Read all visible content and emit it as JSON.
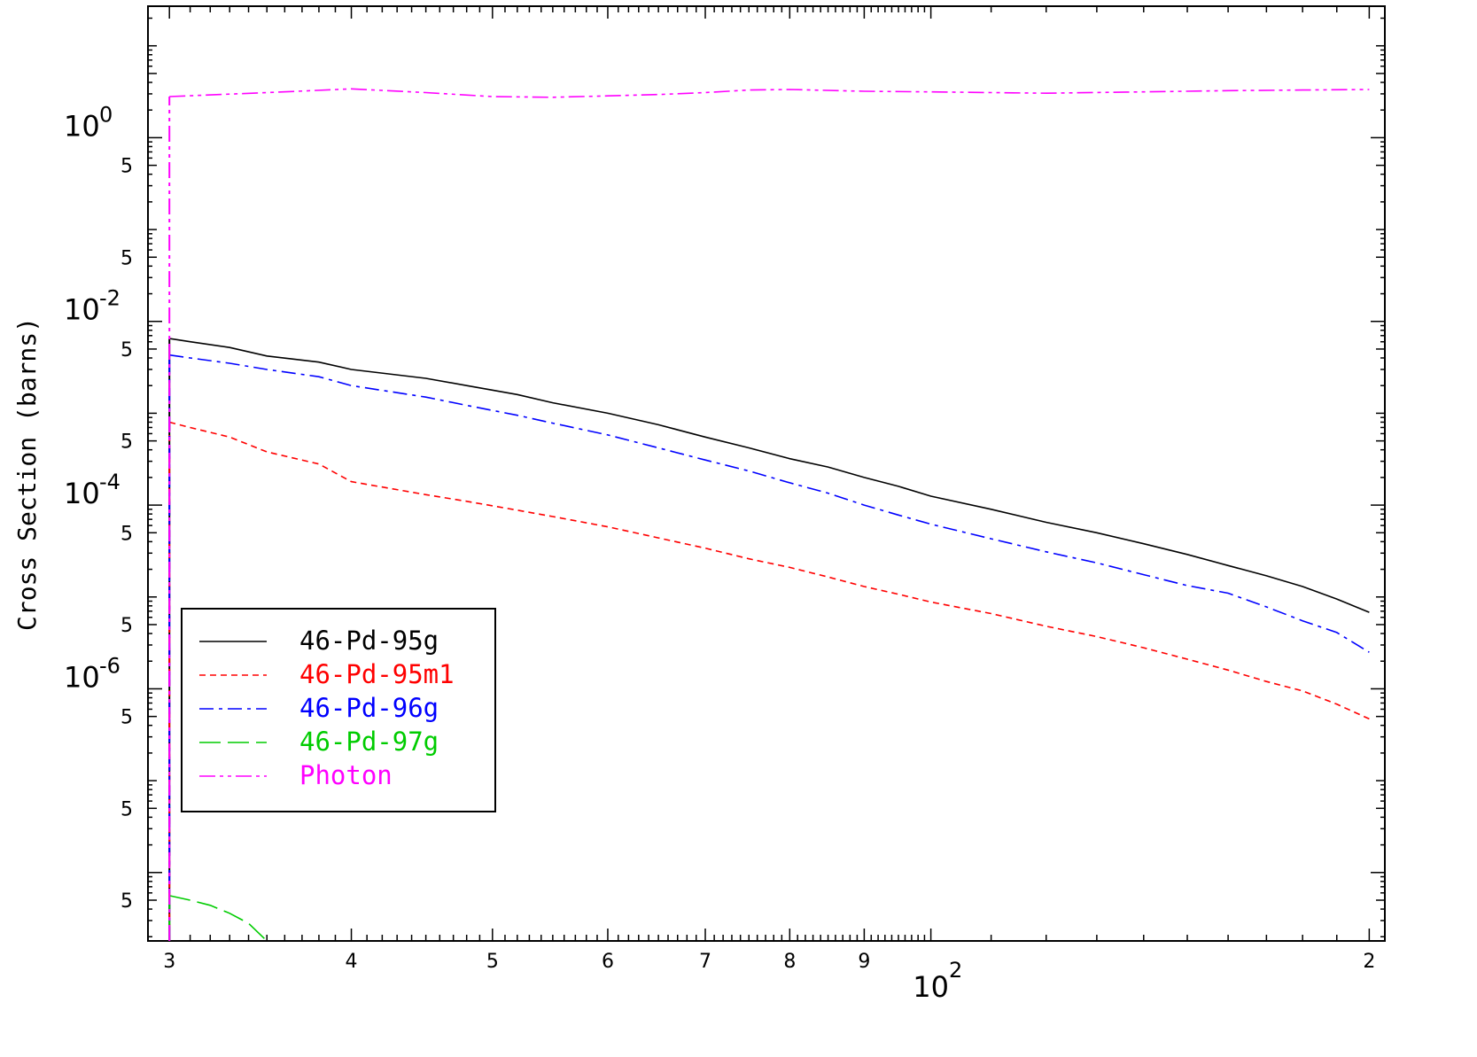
{
  "chart_data": {
    "type": "line",
    "title": "",
    "xlabel": "",
    "ylabel": "Cross Section (barns)",
    "xscale": "log",
    "yscale": "log",
    "xlim": [
      29,
      205
    ],
    "ylim": [
      1.8e-09,
      27
    ],
    "grid": false,
    "legend_position": "bottom-left",
    "x_ticks": [
      {
        "value": 30,
        "label": "3"
      },
      {
        "value": 40,
        "label": "4"
      },
      {
        "value": 50,
        "label": "5"
      },
      {
        "value": 60,
        "label": "6"
      },
      {
        "value": 70,
        "label": "7"
      },
      {
        "value": 80,
        "label": "8"
      },
      {
        "value": 90,
        "label": "9"
      },
      {
        "value": 100,
        "label": "10",
        "exponent": "2"
      },
      {
        "value": 200,
        "label": "2"
      }
    ],
    "y_ticks": [
      {
        "value": 1,
        "label": "10",
        "exponent": "0"
      },
      {
        "value": 0.01,
        "label": "10",
        "exponent": "-2"
      },
      {
        "value": 0.0001,
        "label": "10",
        "exponent": "-4"
      },
      {
        "value": 1e-06,
        "label": "10",
        "exponent": "-6"
      }
    ],
    "y_minor_labels": [
      {
        "value": 0.5,
        "label": "5"
      },
      {
        "value": 0.05,
        "label": "5"
      },
      {
        "value": 0.005,
        "label": "5"
      },
      {
        "value": 0.0005,
        "label": "5"
      },
      {
        "value": 5e-05,
        "label": "5"
      },
      {
        "value": 5e-06,
        "label": "5"
      },
      {
        "value": 5e-07,
        "label": "5"
      },
      {
        "value": 5e-08,
        "label": "5"
      },
      {
        "value": 5e-09,
        "label": "5"
      }
    ],
    "series": [
      {
        "name": "46-Pd-95g",
        "color": "#000000",
        "dash": "solid",
        "x": [
          30,
          31,
          33,
          35,
          38,
          40,
          45,
          48,
          52,
          55,
          60,
          65,
          70,
          75,
          80,
          85,
          90,
          95,
          100,
          110,
          120,
          130,
          140,
          150,
          160,
          170,
          180,
          190,
          200
        ],
        "y": [
          0.0065,
          0.006,
          0.0052,
          0.0042,
          0.0036,
          0.003,
          0.0024,
          0.002,
          0.0016,
          0.0013,
          0.001,
          0.00075,
          0.00055,
          0.00042,
          0.00032,
          0.00026,
          0.0002,
          0.00016,
          0.000125,
          9e-05,
          6.5e-05,
          5e-05,
          3.8e-05,
          2.9e-05,
          2.2e-05,
          1.7e-05,
          1.3e-05,
          9.5e-06,
          6.8e-06
        ]
      },
      {
        "name": "46-Pd-95m1",
        "color": "#ff0000",
        "dash": "dashed",
        "x": [
          30,
          31,
          33,
          35,
          38,
          40,
          45,
          48,
          52,
          55,
          60,
          65,
          70,
          75,
          80,
          85,
          90,
          95,
          100,
          110,
          120,
          130,
          140,
          150,
          160,
          170,
          180,
          190,
          200
        ],
        "y": [
          0.0008,
          0.0007,
          0.00055,
          0.00038,
          0.00028,
          0.00018,
          0.00013,
          0.00011,
          8.8e-05,
          7.5e-05,
          5.8e-05,
          4.4e-05,
          3.4e-05,
          2.6e-05,
          2.1e-05,
          1.65e-05,
          1.3e-05,
          1.07e-05,
          8.8e-06,
          6.6e-06,
          4.8e-06,
          3.7e-06,
          2.8e-06,
          2.1e-06,
          1.6e-06,
          1.2e-06,
          9.5e-07,
          6.8e-07,
          4.7e-07
        ]
      },
      {
        "name": "46-Pd-96g",
        "color": "#0000ff",
        "dash": "dashdot",
        "x": [
          30,
          31,
          33,
          35,
          38,
          40,
          45,
          48,
          52,
          55,
          60,
          65,
          70,
          75,
          80,
          85,
          90,
          95,
          100,
          110,
          120,
          130,
          140,
          150,
          160,
          170,
          180,
          190,
          200
        ],
        "y": [
          0.0043,
          0.004,
          0.0035,
          0.003,
          0.0025,
          0.002,
          0.0015,
          0.00122,
          0.00095,
          0.00078,
          0.00058,
          0.00042,
          0.00031,
          0.000235,
          0.000175,
          0.000135,
          0.0001,
          7.8e-05,
          6.2e-05,
          4.3e-05,
          3.1e-05,
          2.35e-05,
          1.75e-05,
          1.33e-05,
          1.1e-05,
          7.8e-06,
          5.5e-06,
          4.1e-06,
          2.5e-06
        ]
      },
      {
        "name": "46-Pd-97g",
        "color": "#00cc00",
        "dash": "longdash",
        "x": [
          30,
          31,
          32,
          33,
          34,
          35
        ],
        "y": [
          5.6e-09,
          5e-09,
          4.4e-09,
          3.6e-09,
          2.8e-09,
          1.8e-09
        ]
      },
      {
        "name": "Photon",
        "color": "#ff00ff",
        "dash": "dashdotdot",
        "x": [
          30,
          35,
          40,
          45,
          50,
          55,
          60,
          65,
          70,
          75,
          80,
          90,
          100,
          120,
          140,
          160,
          180,
          200
        ],
        "y": [
          2.8,
          3.1,
          3.4,
          3.1,
          2.8,
          2.75,
          2.85,
          2.95,
          3.1,
          3.3,
          3.35,
          3.2,
          3.15,
          3.05,
          3.15,
          3.25,
          3.3,
          3.35
        ]
      }
    ]
  }
}
